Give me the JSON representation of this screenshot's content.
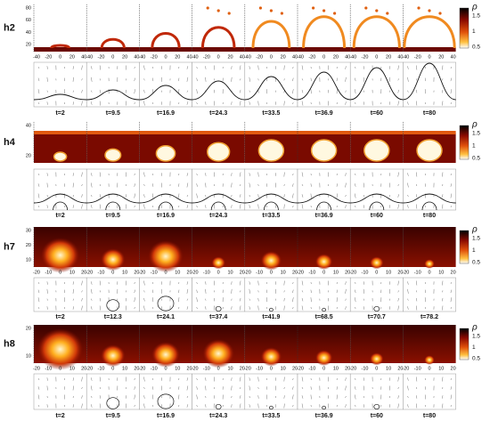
{
  "panels": [
    {
      "label": "h2",
      "yticks": [
        80,
        60,
        40,
        20
      ],
      "xticks": [
        -40,
        -20,
        0,
        20,
        40
      ],
      "colorbar": {
        "symbol": "ρ",
        "ticks": [
          1.5,
          1,
          0.5
        ]
      },
      "times": [
        "t=2",
        "t=9.5",
        "t=16.9",
        "t=24.3",
        "t=33.5",
        "t=36.9",
        "t=60",
        "t=80"
      ]
    },
    {
      "label": "h4",
      "yticks": [
        40,
        20
      ],
      "colorbar": {
        "symbol": "ρ",
        "ticks": [
          1.5,
          1,
          0.5
        ]
      },
      "times": [
        "t=2",
        "t=9.5",
        "t=16.9",
        "t=24.3",
        "t=33.5",
        "t=36.9",
        "t=60",
        "t=80"
      ]
    },
    {
      "label": "h7",
      "yticks": [
        30,
        20,
        10
      ],
      "xticks": [
        -20,
        -10,
        0,
        10,
        20
      ],
      "colorbar": {
        "symbol": "ρ",
        "ticks": [
          1.5,
          1,
          0.5
        ]
      },
      "times": [
        "t=2",
        "t=12.3",
        "t=24.1",
        "t=37.4",
        "t=41.9",
        "t=68.5",
        "t=70.7",
        "t=78.2"
      ]
    },
    {
      "label": "h8",
      "yticks": [
        20,
        10
      ],
      "xticks": [
        -20,
        -10,
        0,
        10,
        20
      ],
      "colorbar": {
        "symbol": "ρ",
        "ticks": [
          1.5,
          1,
          0.5
        ]
      },
      "times": [
        "t=2",
        "t=9.5",
        "t=16.9",
        "t=24.3",
        "t=33.5",
        "t=36.9",
        "t=60",
        "t=80"
      ]
    }
  ]
}
